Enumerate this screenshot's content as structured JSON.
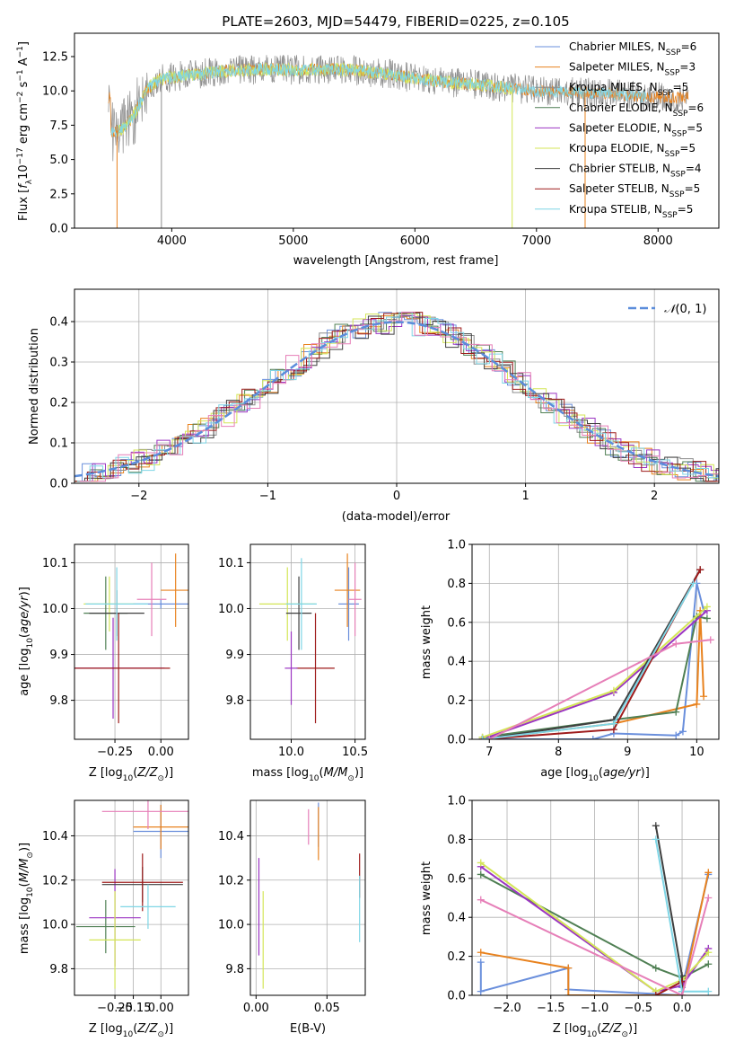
{
  "title": "PLATE=2603, MJD=54479, FIBERID=0225, z=0.105",
  "colors": {
    "chabrier_miles": "#6a8fdc",
    "salpeter_miles": "#e8821e",
    "kroupa_miles": "#8c8c8c",
    "chabrier_elodie": "#4f7f53",
    "salpeter_elodie": "#9b35c2",
    "kroupa_elodie": "#d4e657",
    "chabrier_stelib": "#3f3f3f",
    "salpeter_stelib": "#9e1b1b",
    "kroupa_stelib": "#7fd6e6",
    "pink": "#e67fb8",
    "normal_curve": "#5b8ddb"
  },
  "chart_data": [
    {
      "id": "spectrum",
      "type": "line",
      "xlabel": "wavelength [Angstrom, rest frame]",
      "ylabel": "Flux [f_λ10^-17 erg cm^-2 s^-1 A^-1]",
      "xlim": [
        3200,
        8500
      ],
      "ylim": [
        0,
        14.2
      ],
      "xticks": [
        4000,
        5000,
        6000,
        7000,
        8000
      ],
      "yticks": [
        0.0,
        2.5,
        5.0,
        7.5,
        10.0,
        12.5
      ],
      "legend": {
        "placement": "top-right",
        "entries": [
          "Chabrier MILES, N_SSP=6",
          "Salpeter MILES, N_SSP=3",
          "Kroupa MILES, N_SSP=5",
          "Chabrier ELODIE, N_SSP=6",
          "Salpeter ELODIE, N_SSP=5",
          "Kroupa ELODIE, N_SSP=5",
          "Chabrier STELIB, N_SSP=4",
          "Salpeter STELIB, N_SSP=5",
          "Kroupa STELIB, N_SSP=5"
        ]
      },
      "continuum": [
        [
          3500,
          7.0
        ],
        [
          3600,
          7.2
        ],
        [
          3700,
          8.4
        ],
        [
          3800,
          10.2
        ],
        [
          3900,
          10.8
        ],
        [
          4000,
          11.0
        ],
        [
          4200,
          11.2
        ],
        [
          4500,
          11.5
        ],
        [
          4800,
          11.6
        ],
        [
          5000,
          11.5
        ],
        [
          5200,
          11.6
        ],
        [
          5500,
          11.5
        ],
        [
          5800,
          11.2
        ],
        [
          6000,
          10.9
        ],
        [
          6300,
          10.6
        ],
        [
          6600,
          10.4
        ],
        [
          7000,
          10.0
        ],
        [
          7300,
          9.9
        ],
        [
          7600,
          9.8
        ],
        [
          7900,
          9.6
        ],
        [
          8200,
          9.5
        ]
      ]
    },
    {
      "id": "residuals",
      "type": "line",
      "xlabel": "(data-model)/error",
      "ylabel": "Normed distribution",
      "xlim": [
        -2.5,
        2.5
      ],
      "ylim": [
        0,
        0.48
      ],
      "xticks": [
        -2,
        -1,
        0,
        1,
        2
      ],
      "yticks": [
        0.0,
        0.1,
        0.2,
        0.3,
        0.4
      ],
      "legend": {
        "placement": "top-right",
        "entries": [
          "N(0,1)"
        ]
      }
    },
    {
      "id": "age_vs_Z",
      "type": "scatter",
      "xlabel": "Z [log10(Z/Z⊙)]",
      "ylabel": "age  [log10(age/yr)]",
      "xlim": [
        -0.47,
        0.15
      ],
      "ylim": [
        9.715,
        10.14
      ],
      "xticks": [
        -0.25,
        0.0
      ],
      "yticks": [
        9.8,
        9.9,
        10.0,
        10.1
      ],
      "points": [
        {
          "x": 0.0,
          "y": 10.01,
          "xerr": 0.15,
          "yerr": 0.01,
          "color": "chabrier_miles"
        },
        {
          "x": 0.08,
          "y": 10.04,
          "xerr": 0.08,
          "yerr": 0.08,
          "color": "salpeter_miles"
        },
        {
          "x": -0.3,
          "y": 9.99,
          "xerr": 0.12,
          "yerr": 0.08,
          "color": "chabrier_elodie"
        },
        {
          "x": -0.28,
          "y": 10.01,
          "xerr": 0.14,
          "yerr": 0.06,
          "color": "kroupa_elodie"
        },
        {
          "x": -0.26,
          "y": 9.87,
          "xerr": 0.28,
          "yerr": 0.11,
          "color": "salpeter_elodie"
        },
        {
          "x": -0.24,
          "y": 9.99,
          "xerr": 0.15,
          "yerr": 0.05,
          "color": "chabrier_stelib"
        },
        {
          "x": -0.23,
          "y": 9.87,
          "xerr": 0.28,
          "yerr": 0.12,
          "color": "salpeter_stelib"
        },
        {
          "x": -0.24,
          "y": 10.01,
          "xerr": 0.17,
          "yerr": 0.08,
          "color": "kroupa_stelib"
        },
        {
          "x": -0.05,
          "y": 10.02,
          "xerr": 0.08,
          "yerr": 0.08,
          "color": "pink"
        }
      ]
    },
    {
      "id": "age_vs_mass",
      "type": "scatter",
      "xlabel": "mass [log10(M/M⊙)]",
      "ylabel": "",
      "xlim": [
        9.68,
        10.58
      ],
      "ylim": [
        9.715,
        10.14
      ],
      "xticks": [
        10.0,
        10.5
      ],
      "yticks": [
        9.8,
        9.9,
        10.0,
        10.1
      ],
      "points": [
        {
          "x": 10.45,
          "y": 10.01,
          "xerr": 0.08,
          "yerr": 0.08,
          "color": "chabrier_miles"
        },
        {
          "x": 10.44,
          "y": 10.04,
          "xerr": 0.1,
          "yerr": 0.08,
          "color": "salpeter_miles"
        },
        {
          "x": 9.97,
          "y": 10.01,
          "xerr": 0.22,
          "yerr": 0.08,
          "color": "kroupa_elodie"
        },
        {
          "x": 10.06,
          "y": 9.99,
          "xerr": 0.1,
          "yerr": 0.08,
          "color": "chabrier_stelib"
        },
        {
          "x": 10.19,
          "y": 9.87,
          "xerr": 0.15,
          "yerr": 0.12,
          "color": "salpeter_stelib"
        },
        {
          "x": 10.08,
          "y": 10.01,
          "xerr": 0.12,
          "yerr": 0.1,
          "color": "kroupa_stelib"
        },
        {
          "x": 10.0,
          "y": 9.87,
          "xerr": 0.05,
          "yerr": 0.08,
          "color": "salpeter_elodie"
        },
        {
          "x": 10.5,
          "y": 10.02,
          "xerr": 0.05,
          "yerr": 0.08,
          "color": "pink"
        }
      ]
    },
    {
      "id": "massweight_vs_age",
      "type": "line",
      "xlabel": "age  [log10(age/yr)]",
      "ylabel": "mass weight",
      "xlim": [
        6.75,
        10.32
      ],
      "ylim": [
        0,
        1.0
      ],
      "xticks": [
        7,
        8,
        9,
        10
      ],
      "yticks": [
        0.0,
        0.2,
        0.4,
        0.6,
        0.8,
        1.0
      ],
      "series": [
        {
          "color": "chabrier_miles",
          "x": [
            6.9,
            8.5,
            8.8,
            9.7,
            9.8,
            10.0,
            10.1
          ],
          "y": [
            0.0,
            0.0,
            0.03,
            0.02,
            0.04,
            0.8,
            0.66
          ]
        },
        {
          "color": "salpeter_miles",
          "x": [
            6.9,
            8.8,
            10.0,
            10.05,
            10.1
          ],
          "y": [
            0.0,
            0.08,
            0.18,
            0.66,
            0.22
          ]
        },
        {
          "color": "chabrier_elodie",
          "x": [
            6.9,
            8.8,
            9.7,
            10.0,
            10.15
          ],
          "y": [
            0.01,
            0.1,
            0.14,
            0.63,
            0.62
          ]
        },
        {
          "color": "salpeter_elodie",
          "x": [
            6.9,
            8.8,
            10.15
          ],
          "y": [
            0.0,
            0.24,
            0.66
          ]
        },
        {
          "color": "kroupa_elodie",
          "x": [
            6.9,
            8.8,
            10.15
          ],
          "y": [
            0.01,
            0.25,
            0.68
          ]
        },
        {
          "color": "chabrier_stelib",
          "x": [
            6.9,
            8.8,
            10.05
          ],
          "y": [
            0.0,
            0.1,
            0.87
          ]
        },
        {
          "color": "salpeter_stelib",
          "x": [
            6.9,
            8.8,
            10.05
          ],
          "y": [
            0.0,
            0.05,
            0.87
          ]
        },
        {
          "color": "kroupa_stelib",
          "x": [
            6.9,
            8.8,
            9.95
          ],
          "y": [
            0.0,
            0.08,
            0.8
          ]
        },
        {
          "color": "pink",
          "x": [
            7.0,
            9.7,
            10.2
          ],
          "y": [
            0.0,
            0.49,
            0.51
          ]
        }
      ]
    },
    {
      "id": "mass_vs_Z",
      "type": "scatter",
      "xlabel": "Z [log10(Z/Z⊙)]",
      "ylabel": "mass [log10(M/M⊙)]",
      "xlim": [
        -0.47,
        0.15
      ],
      "ylim": [
        9.68,
        10.56
      ],
      "xticks": [
        -0.25,
        -0.15,
        0.0
      ],
      "yticks": [
        9.8,
        10.0,
        10.2,
        10.4
      ],
      "points": [
        {
          "x": 0.0,
          "y": 10.42,
          "xerr": 0.15,
          "yerr": 0.12,
          "color": "chabrier_miles"
        },
        {
          "x": 0.0,
          "y": 10.44,
          "xerr": 0.15,
          "yerr": 0.1,
          "color": "salpeter_miles"
        },
        {
          "x": -0.3,
          "y": 9.99,
          "xerr": 0.16,
          "yerr": 0.12,
          "color": "chabrier_elodie"
        },
        {
          "x": -0.25,
          "y": 10.03,
          "xerr": 0.14,
          "yerr": 0.22,
          "color": "salpeter_elodie"
        },
        {
          "x": -0.25,
          "y": 9.93,
          "xerr": 0.14,
          "yerr": 0.22,
          "color": "kroupa_elodie"
        },
        {
          "x": -0.1,
          "y": 10.18,
          "xerr": 0.22,
          "yerr": 0.08,
          "color": "chabrier_stelib"
        },
        {
          "x": -0.1,
          "y": 10.19,
          "xerr": 0.22,
          "yerr": 0.13,
          "color": "salpeter_stelib"
        },
        {
          "x": -0.07,
          "y": 10.08,
          "xerr": 0.15,
          "yerr": 0.1,
          "color": "kroupa_stelib"
        },
        {
          "x": -0.07,
          "y": 10.51,
          "xerr": 0.25,
          "yerr": 0.08,
          "color": "pink"
        }
      ]
    },
    {
      "id": "mass_vs_EBV",
      "type": "scatter",
      "xlabel": "E(B-V)",
      "ylabel": "",
      "xlim": [
        -0.004,
        0.077
      ],
      "ylim": [
        9.68,
        10.56
      ],
      "xticks": [
        0.0,
        0.05
      ],
      "yticks": [
        9.8,
        10.0,
        10.2,
        10.4
      ],
      "points": [
        {
          "x": 0.044,
          "y": 10.45,
          "yerr": 0.1,
          "color": "chabrier_miles"
        },
        {
          "x": 0.044,
          "y": 10.41,
          "yerr": 0.12,
          "color": "salpeter_miles"
        },
        {
          "x": 0.002,
          "y": 10.08,
          "yerr": 0.22,
          "color": "salpeter_elodie"
        },
        {
          "x": 0.005,
          "y": 9.93,
          "yerr": 0.22,
          "color": "kroupa_elodie"
        },
        {
          "x": 0.073,
          "y": 10.22,
          "yerr": 0.1,
          "color": "salpeter_stelib"
        },
        {
          "x": 0.073,
          "y": 10.07,
          "yerr": 0.15,
          "color": "kroupa_stelib"
        },
        {
          "x": 0.037,
          "y": 10.44,
          "yerr": 0.08,
          "color": "pink"
        }
      ]
    },
    {
      "id": "massweight_vs_Z",
      "type": "line",
      "xlabel": "Z [log10(Z/Z⊙)]",
      "ylabel": "mass weight",
      "xlim": [
        -2.4,
        0.42
      ],
      "ylim": [
        0,
        1.0
      ],
      "xticks": [
        -2.0,
        -1.5,
        -1.0,
        -0.5,
        0.0
      ],
      "yticks": [
        0.0,
        0.2,
        0.4,
        0.6,
        0.8,
        1.0
      ],
      "series": [
        {
          "color": "chabrier_miles",
          "x": [
            -2.3,
            -2.3,
            -1.3,
            -1.3,
            0.0,
            0.0,
            0.3
          ],
          "y": [
            0.17,
            0.02,
            0.14,
            0.03,
            0.0,
            0.04,
            0.62
          ]
        },
        {
          "color": "salpeter_miles",
          "x": [
            -2.3,
            -1.3,
            -1.3,
            0.0,
            0.3
          ],
          "y": [
            0.22,
            0.14,
            0.0,
            0.0,
            0.63
          ]
        },
        {
          "color": "chabrier_elodie",
          "x": [
            -2.3,
            -0.3,
            0.0,
            0.3
          ],
          "y": [
            0.62,
            0.14,
            0.09,
            0.16
          ]
        },
        {
          "color": "salpeter_elodie",
          "x": [
            -2.3,
            -0.3,
            0.0,
            0.3
          ],
          "y": [
            0.66,
            0.02,
            0.05,
            0.24
          ]
        },
        {
          "color": "kroupa_elodie",
          "x": [
            -2.3,
            -0.3,
            0.0,
            0.3
          ],
          "y": [
            0.68,
            0.02,
            0.08,
            0.22
          ]
        },
        {
          "color": "chabrier_stelib",
          "x": [
            -0.3,
            0.0,
            0.0
          ],
          "y": [
            0.87,
            0.1,
            0.02
          ]
        },
        {
          "color": "salpeter_stelib",
          "x": [
            -0.3,
            0.0
          ],
          "y": [
            0.0,
            0.07
          ]
        },
        {
          "color": "kroupa_stelib",
          "x": [
            -0.3,
            0.0,
            0.3
          ],
          "y": [
            0.8,
            0.02,
            0.02
          ]
        },
        {
          "color": "pink",
          "x": [
            -2.3,
            0.0,
            0.3
          ],
          "y": [
            0.49,
            0.0,
            0.5
          ]
        }
      ]
    }
  ]
}
